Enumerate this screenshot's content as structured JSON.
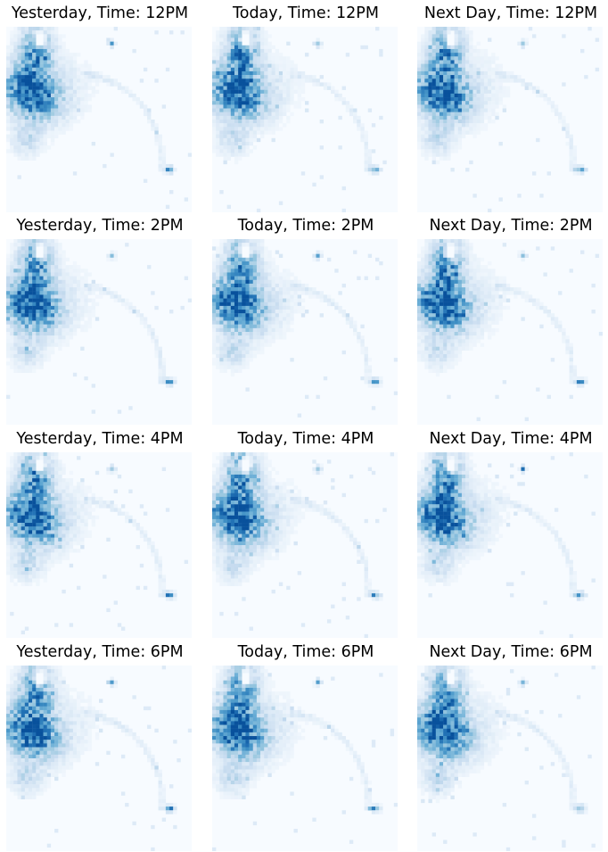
{
  "chart_data": [
    {
      "type": "heatmap",
      "title": "Yesterday, Time: 12PM",
      "colormap": "Blues",
      "background": "#f7fbff"
    },
    {
      "type": "heatmap",
      "title": "Today, Time: 12PM",
      "colormap": "Blues",
      "background": "#f7fbff"
    },
    {
      "type": "heatmap",
      "title": "Next Day, Time: 12PM",
      "colormap": "Blues",
      "background": "#f7fbff"
    },
    {
      "type": "heatmap",
      "title": "Yesterday, Time: 2PM",
      "colormap": "Blues",
      "background": "#f7fbff"
    },
    {
      "type": "heatmap",
      "title": "Today, Time: 2PM",
      "colormap": "Blues",
      "background": "#f7fbff"
    },
    {
      "type": "heatmap",
      "title": "Next Day, Time: 2PM",
      "colormap": "Blues",
      "background": "#f7fbff"
    },
    {
      "type": "heatmap",
      "title": "Yesterday, Time: 4PM",
      "colormap": "Blues",
      "background": "#f7fbff"
    },
    {
      "type": "heatmap",
      "title": "Today, Time: 4PM",
      "colormap": "Blues",
      "background": "#f7fbff"
    },
    {
      "type": "heatmap",
      "title": "Next Day, Time: 4PM",
      "colormap": "Blues",
      "background": "#f7fbff"
    },
    {
      "type": "heatmap",
      "title": "Yesterday, Time: 6PM",
      "colormap": "Blues",
      "background": "#f7fbff"
    },
    {
      "type": "heatmap",
      "title": "Today, Time: 6PM",
      "colormap": "Blues",
      "background": "#f7fbff"
    },
    {
      "type": "heatmap",
      "title": "Next Day, Time: 6PM",
      "colormap": "Blues",
      "background": "#f7fbff"
    }
  ]
}
